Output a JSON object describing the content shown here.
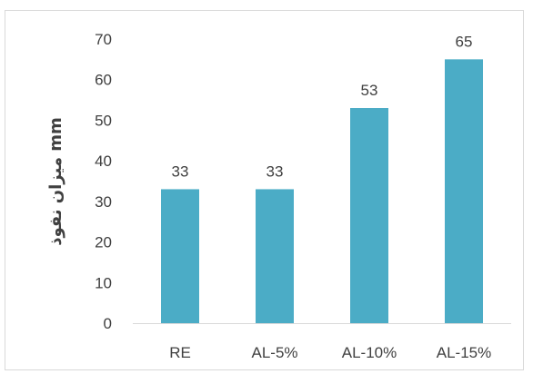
{
  "chart_data": {
    "type": "bar",
    "title": "",
    "xlabel": "",
    "ylabel": "میزان نفوذ mm",
    "categories": [
      "RE",
      "AL-5%",
      "AL-10%",
      "AL-15%"
    ],
    "values": [
      33,
      33,
      53,
      65
    ],
    "data_labels": [
      "33",
      "33",
      "53",
      "65"
    ],
    "yticks": [
      "0",
      "10",
      "20",
      "30",
      "40",
      "50",
      "60",
      "70"
    ],
    "ylim": [
      0,
      70
    ],
    "grid": false,
    "legend": "none",
    "bar_color": "#4bacc6",
    "axis_color": "#d9d9d9"
  }
}
